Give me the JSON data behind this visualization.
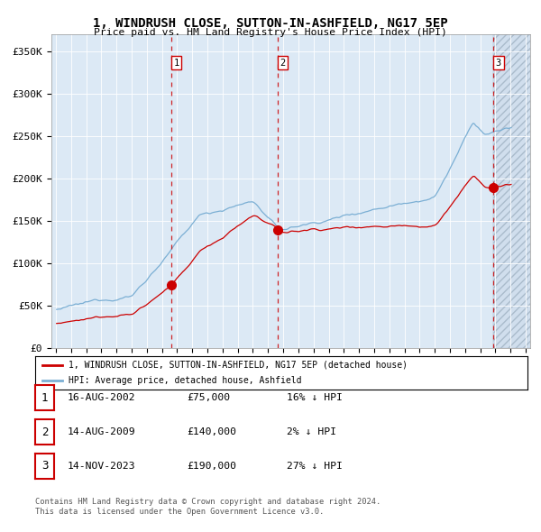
{
  "title": "1, WINDRUSH CLOSE, SUTTON-IN-ASHFIELD, NG17 5EP",
  "subtitle": "Price paid vs. HM Land Registry's House Price Index (HPI)",
  "legend_line1": "1, WINDRUSH CLOSE, SUTTON-IN-ASHFIELD, NG17 5EP (detached house)",
  "legend_line2": "HPI: Average price, detached house, Ashfield",
  "transactions": [
    {
      "num": 1,
      "date": "16-AUG-2002",
      "price": 75000,
      "pct": "16%",
      "dir": "↓"
    },
    {
      "num": 2,
      "date": "14-AUG-2009",
      "price": 140000,
      "pct": "2%",
      "dir": "↓"
    },
    {
      "num": 3,
      "date": "14-NOV-2023",
      "price": 190000,
      "pct": "27%",
      "dir": "↓"
    }
  ],
  "trans_dates_float": [
    2002.622,
    2009.622,
    2023.875
  ],
  "trans_prices_k": [
    75,
    140,
    190
  ],
  "xlim_start": 1994.7,
  "xlim_end": 2026.3,
  "ylim_min": 0,
  "ylim_max": 370,
  "yticks": [
    0,
    50,
    100,
    150,
    200,
    250,
    300,
    350
  ],
  "hpi_color": "#7bafd4",
  "property_color": "#cc0000",
  "bg_color": "#dce9f5",
  "grid_color": "#ffffff",
  "footnote1": "Contains HM Land Registry data © Crown copyright and database right 2024.",
  "footnote2": "This data is licensed under the Open Government Licence v3.0."
}
